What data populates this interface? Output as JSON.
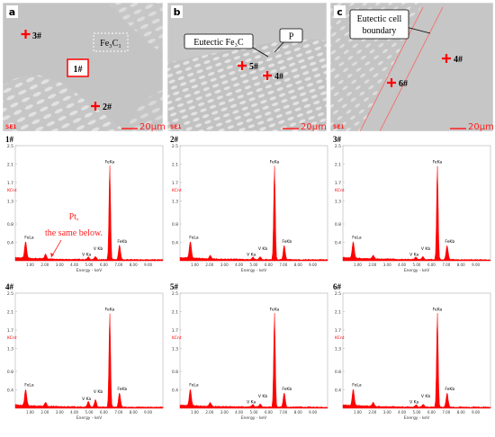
{
  "panels": [
    {
      "label": "a",
      "scale": "20μm",
      "se": "SE1",
      "points": [
        {
          "id": "3#"
        },
        {
          "id": "2#"
        },
        {
          "id": "1#"
        }
      ],
      "phase_label": "Fe₃C₁"
    },
    {
      "label": "b",
      "scale": "20μm",
      "se": "SE1",
      "points": [
        {
          "id": "5#"
        },
        {
          "id": "4#"
        }
      ],
      "callout_main": "Eutectic Fe₃C",
      "callout_p": "P"
    },
    {
      "label": "c",
      "scale": "20μm",
      "se": "SE1",
      "points": [
        {
          "id": "6#"
        },
        {
          "id": "4#"
        }
      ],
      "callout_line1": "Eutectic cell",
      "callout_line2": "boundary"
    }
  ],
  "spectra": [
    {
      "title": "1#"
    },
    {
      "title": "2#"
    },
    {
      "title": "3#"
    },
    {
      "title": "4#"
    },
    {
      "title": "5#"
    },
    {
      "title": "6#"
    }
  ],
  "spectrum_common": {
    "ylabel": "KCnt",
    "xlabel": "Energy - keV",
    "yticks": [
      "2.5",
      "2.1",
      "1.7",
      "1.3",
      "0.8",
      "0.4"
    ],
    "xticks": [
      "1.00",
      "2.00",
      "3.00",
      "4.00",
      "5.00",
      "6.00",
      "7.00",
      "8.00",
      "9.00"
    ],
    "peak_labels": {
      "fela": "FeLa",
      "feka": "FeKa",
      "fekb": "FeKb",
      "vka": "V Ka",
      "vkb": "V Kb"
    }
  },
  "annotation": {
    "line1": "Pt,",
    "line2": "the same below."
  },
  "colors": {
    "spectrum": "#ff0000",
    "axis": "#b0b0b0",
    "marker": "#ff0000",
    "sem_bg": "#c4c4c4"
  },
  "chart_data": [
    {
      "type": "area",
      "title": "1#",
      "xlabel": "Energy - keV",
      "ylabel": "KCnt",
      "xlim": [
        0,
        10
      ],
      "ylim": [
        0,
        2.5
      ],
      "peaks": [
        {
          "x": 0.7,
          "y": 0.36,
          "label": "FeLa"
        },
        {
          "x": 2.05,
          "y": 0.1
        },
        {
          "x": 4.95,
          "y": 0.05,
          "label": "V Ka"
        },
        {
          "x": 5.43,
          "y": 0.06,
          "label": "V Kb"
        },
        {
          "x": 6.4,
          "y": 2.06,
          "label": "FeKa"
        },
        {
          "x": 7.06,
          "y": 0.31,
          "label": "FeKb"
        }
      ]
    },
    {
      "type": "area",
      "title": "2#",
      "xlabel": "Energy - keV",
      "ylabel": "KCnt",
      "xlim": [
        0,
        10
      ],
      "ylim": [
        0,
        2.5
      ],
      "peaks": [
        {
          "x": 0.7,
          "y": 0.36,
          "label": "FeLa"
        },
        {
          "x": 2.05,
          "y": 0.08
        },
        {
          "x": 4.95,
          "y": 0.05,
          "label": "V Ka"
        },
        {
          "x": 5.43,
          "y": 0.06,
          "label": "V Kb"
        },
        {
          "x": 6.4,
          "y": 2.06,
          "label": "FeKa"
        },
        {
          "x": 7.06,
          "y": 0.31,
          "label": "FeKb"
        }
      ]
    },
    {
      "type": "area",
      "title": "3#",
      "xlabel": "Energy - keV",
      "ylabel": "KCnt",
      "xlim": [
        0,
        10
      ],
      "ylim": [
        0,
        2.5
      ],
      "peaks": [
        {
          "x": 0.7,
          "y": 0.36,
          "label": "FeLa"
        },
        {
          "x": 2.05,
          "y": 0.08
        },
        {
          "x": 4.95,
          "y": 0.05,
          "label": "V Ka"
        },
        {
          "x": 5.43,
          "y": 0.06,
          "label": "V Kb"
        },
        {
          "x": 6.4,
          "y": 2.06,
          "label": "FeKa"
        },
        {
          "x": 7.06,
          "y": 0.31,
          "label": "FeKb"
        }
      ]
    },
    {
      "type": "area",
      "title": "4#",
      "xlabel": "Energy - keV",
      "ylabel": "KCnt",
      "xlim": [
        0,
        10
      ],
      "ylim": [
        0,
        2.5
      ],
      "peaks": [
        {
          "x": 0.7,
          "y": 0.36,
          "label": "FeLa"
        },
        {
          "x": 2.05,
          "y": 0.08
        },
        {
          "x": 4.95,
          "y": 0.12,
          "label": "V Ka"
        },
        {
          "x": 5.43,
          "y": 0.16,
          "label": "V Kb"
        },
        {
          "x": 6.4,
          "y": 2.06,
          "label": "FeKa"
        },
        {
          "x": 7.06,
          "y": 0.31,
          "label": "FeKb"
        }
      ]
    },
    {
      "type": "area",
      "title": "5#",
      "xlabel": "Energy - keV",
      "ylabel": "KCnt",
      "xlim": [
        0,
        10
      ],
      "ylim": [
        0,
        2.5
      ],
      "peaks": [
        {
          "x": 0.7,
          "y": 0.36,
          "label": "FeLa"
        },
        {
          "x": 2.05,
          "y": 0.08
        },
        {
          "x": 4.95,
          "y": 0.05,
          "label": "V Ka"
        },
        {
          "x": 5.43,
          "y": 0.06,
          "label": "V Kb"
        },
        {
          "x": 6.4,
          "y": 2.06,
          "label": "FeKa"
        },
        {
          "x": 7.06,
          "y": 0.31,
          "label": "FeKb"
        }
      ]
    },
    {
      "type": "area",
      "title": "6#",
      "xlabel": "Energy - keV",
      "ylabel": "KCnt",
      "xlim": [
        0,
        10
      ],
      "ylim": [
        0,
        2.5
      ],
      "peaks": [
        {
          "x": 0.7,
          "y": 0.36,
          "label": "FeLa"
        },
        {
          "x": 2.05,
          "y": 0.08
        },
        {
          "x": 4.95,
          "y": 0.05,
          "label": "V Ka"
        },
        {
          "x": 5.43,
          "y": 0.06,
          "label": "V Kb"
        },
        {
          "x": 6.4,
          "y": 2.06,
          "label": "FeKa"
        },
        {
          "x": 7.06,
          "y": 0.31,
          "label": "FeKb"
        }
      ]
    }
  ]
}
